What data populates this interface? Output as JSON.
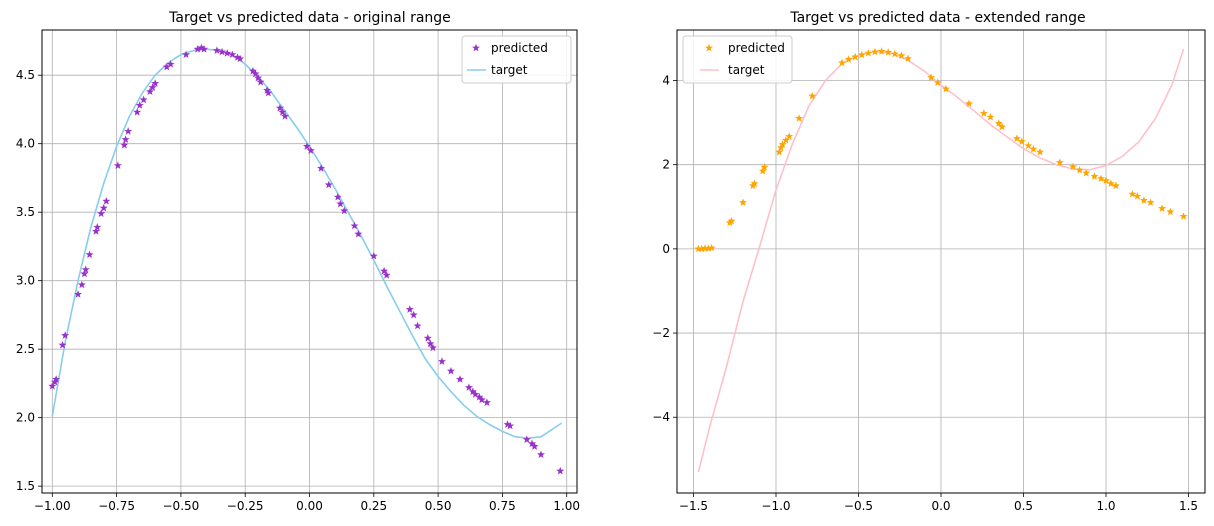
{
  "chart_data": [
    {
      "type": "scatter",
      "title": "Target vs predicted data - original range",
      "xlabel": "",
      "ylabel": "",
      "xlim": [
        -1.04,
        1.04
      ],
      "ylim": [
        1.45,
        4.83
      ],
      "xticks": [
        -1.0,
        -0.75,
        -0.5,
        -0.25,
        0.0,
        0.25,
        0.5,
        0.75,
        1.0
      ],
      "xtick_labels": [
        "−1.00",
        "−0.75",
        "−0.50",
        "−0.25",
        "0.00",
        "0.25",
        "0.50",
        "0.75",
        "1.00"
      ],
      "yticks": [
        1.5,
        2.0,
        2.5,
        3.0,
        3.5,
        4.0,
        4.5
      ],
      "ytick_labels": [
        "1.5",
        "2.0",
        "2.5",
        "3.0",
        "3.5",
        "4.0",
        "4.5"
      ],
      "grid": true,
      "legend_position": "top-right",
      "series": [
        {
          "name": "predicted",
          "kind": "scatter",
          "marker": "star",
          "color": "#9932CC",
          "points": [
            [
              -1.0,
              2.23
            ],
            [
              -0.99,
              2.26
            ],
            [
              -0.985,
              2.28
            ],
            [
              -0.96,
              2.53
            ],
            [
              -0.95,
              2.6
            ],
            [
              -0.9,
              2.9
            ],
            [
              -0.885,
              2.97
            ],
            [
              -0.875,
              3.05
            ],
            [
              -0.87,
              3.08
            ],
            [
              -0.855,
              3.19
            ],
            [
              -0.83,
              3.36
            ],
            [
              -0.825,
              3.39
            ],
            [
              -0.81,
              3.49
            ],
            [
              -0.8,
              3.53
            ],
            [
              -0.79,
              3.58
            ],
            [
              -0.745,
              3.84
            ],
            [
              -0.72,
              3.99
            ],
            [
              -0.715,
              4.03
            ],
            [
              -0.705,
              4.09
            ],
            [
              -0.67,
              4.23
            ],
            [
              -0.66,
              4.28
            ],
            [
              -0.645,
              4.32
            ],
            [
              -0.62,
              4.38
            ],
            [
              -0.61,
              4.41
            ],
            [
              -0.6,
              4.44
            ],
            [
              -0.555,
              4.56
            ],
            [
              -0.54,
              4.58
            ],
            [
              -0.48,
              4.65
            ],
            [
              -0.435,
              4.69
            ],
            [
              -0.42,
              4.7
            ],
            [
              -0.41,
              4.69
            ],
            [
              -0.36,
              4.68
            ],
            [
              -0.34,
              4.67
            ],
            [
              -0.32,
              4.66
            ],
            [
              -0.3,
              4.65
            ],
            [
              -0.28,
              4.63
            ],
            [
              -0.27,
              4.62
            ],
            [
              -0.22,
              4.53
            ],
            [
              -0.21,
              4.51
            ],
            [
              -0.2,
              4.48
            ],
            [
              -0.19,
              4.45
            ],
            [
              -0.165,
              4.39
            ],
            [
              -0.16,
              4.37
            ],
            [
              -0.115,
              4.26
            ],
            [
              -0.105,
              4.23
            ],
            [
              -0.095,
              4.2
            ],
            [
              -0.01,
              3.98
            ],
            [
              0.005,
              3.95
            ],
            [
              0.045,
              3.82
            ],
            [
              0.075,
              3.7
            ],
            [
              0.11,
              3.61
            ],
            [
              0.12,
              3.56
            ],
            [
              0.135,
              3.51
            ],
            [
              0.175,
              3.4
            ],
            [
              0.19,
              3.34
            ],
            [
              0.25,
              3.18
            ],
            [
              0.29,
              3.07
            ],
            [
              0.3,
              3.04
            ],
            [
              0.39,
              2.79
            ],
            [
              0.405,
              2.75
            ],
            [
              0.42,
              2.67
            ],
            [
              0.46,
              2.58
            ],
            [
              0.47,
              2.54
            ],
            [
              0.48,
              2.51
            ],
            [
              0.515,
              2.41
            ],
            [
              0.55,
              2.34
            ],
            [
              0.585,
              2.28
            ],
            [
              0.62,
              2.22
            ],
            [
              0.635,
              2.19
            ],
            [
              0.645,
              2.17
            ],
            [
              0.66,
              2.15
            ],
            [
              0.67,
              2.13
            ],
            [
              0.69,
              2.11
            ],
            [
              0.77,
              1.95
            ],
            [
              0.78,
              1.94
            ],
            [
              0.845,
              1.84
            ],
            [
              0.865,
              1.81
            ],
            [
              0.875,
              1.79
            ],
            [
              0.9,
              1.73
            ],
            [
              0.975,
              1.61
            ]
          ]
        },
        {
          "name": "target",
          "kind": "line",
          "color": "#87CEEB",
          "points": [
            [
              -1.0,
              2.01
            ],
            [
              -0.95,
              2.55
            ],
            [
              -0.9,
              3.0
            ],
            [
              -0.85,
              3.39
            ],
            [
              -0.8,
              3.71
            ],
            [
              -0.75,
              3.98
            ],
            [
              -0.7,
              4.2
            ],
            [
              -0.65,
              4.37
            ],
            [
              -0.6,
              4.5
            ],
            [
              -0.55,
              4.59
            ],
            [
              -0.5,
              4.65
            ],
            [
              -0.45,
              4.68
            ],
            [
              -0.4,
              4.69
            ],
            [
              -0.35,
              4.68
            ],
            [
              -0.3,
              4.65
            ],
            [
              -0.25,
              4.58
            ],
            [
              -0.2,
              4.49
            ],
            [
              -0.15,
              4.38
            ],
            [
              -0.1,
              4.25
            ],
            [
              -0.05,
              4.12
            ],
            [
              0.0,
              3.98
            ],
            [
              0.05,
              3.83
            ],
            [
              0.1,
              3.67
            ],
            [
              0.15,
              3.5
            ],
            [
              0.2,
              3.33
            ],
            [
              0.25,
              3.15
            ],
            [
              0.3,
              2.96
            ],
            [
              0.35,
              2.78
            ],
            [
              0.4,
              2.6
            ],
            [
              0.45,
              2.43
            ],
            [
              0.5,
              2.3
            ],
            [
              0.55,
              2.19
            ],
            [
              0.6,
              2.09
            ],
            [
              0.65,
              2.01
            ],
            [
              0.7,
              1.95
            ],
            [
              0.75,
              1.9
            ],
            [
              0.8,
              1.86
            ],
            [
              0.85,
              1.85
            ],
            [
              0.9,
              1.86
            ],
            [
              0.98,
              1.96
            ]
          ]
        }
      ]
    },
    {
      "type": "scatter",
      "title": "Target vs predicted data - extended range",
      "xlabel": "",
      "ylabel": "",
      "xlim": [
        -1.6,
        1.6
      ],
      "ylim": [
        -5.8,
        5.2
      ],
      "xticks": [
        -1.5,
        -1.0,
        -0.5,
        0.0,
        0.5,
        1.0,
        1.5
      ],
      "xtick_labels": [
        "−1.5",
        "−1.0",
        "−0.5",
        "0.0",
        "0.5",
        "1.0",
        "1.5"
      ],
      "yticks": [
        -4,
        -2,
        0,
        2,
        4
      ],
      "ytick_labels": [
        "−4",
        "−2",
        "0",
        "2",
        "4"
      ],
      "grid": true,
      "legend_position": "top-left",
      "series": [
        {
          "name": "predicted",
          "kind": "scatter",
          "marker": "star",
          "color": "#FFA500",
          "points": [
            [
              -1.47,
              0.0
            ],
            [
              -1.45,
              0.0
            ],
            [
              -1.43,
              0.01
            ],
            [
              -1.41,
              0.01
            ],
            [
              -1.39,
              0.02
            ],
            [
              -1.28,
              0.62
            ],
            [
              -1.27,
              0.66
            ],
            [
              -1.2,
              1.1
            ],
            [
              -1.14,
              1.5
            ],
            [
              -1.13,
              1.55
            ],
            [
              -1.08,
              1.85
            ],
            [
              -1.07,
              1.94
            ],
            [
              -0.98,
              2.3
            ],
            [
              -0.97,
              2.4
            ],
            [
              -0.96,
              2.48
            ],
            [
              -0.94,
              2.58
            ],
            [
              -0.92,
              2.67
            ],
            [
              -0.86,
              3.1
            ],
            [
              -0.78,
              3.63
            ],
            [
              -0.6,
              4.42
            ],
            [
              -0.56,
              4.5
            ],
            [
              -0.52,
              4.56
            ],
            [
              -0.48,
              4.61
            ],
            [
              -0.44,
              4.65
            ],
            [
              -0.4,
              4.68
            ],
            [
              -0.36,
              4.69
            ],
            [
              -0.32,
              4.67
            ],
            [
              -0.28,
              4.63
            ],
            [
              -0.24,
              4.59
            ],
            [
              -0.2,
              4.52
            ],
            [
              -0.06,
              4.07
            ],
            [
              -0.02,
              3.95
            ],
            [
              0.03,
              3.8
            ],
            [
              0.17,
              3.45
            ],
            [
              0.26,
              3.22
            ],
            [
              0.3,
              3.13
            ],
            [
              0.35,
              2.98
            ],
            [
              0.37,
              2.9
            ],
            [
              0.46,
              2.62
            ],
            [
              0.49,
              2.55
            ],
            [
              0.53,
              2.45
            ],
            [
              0.56,
              2.37
            ],
            [
              0.6,
              2.3
            ],
            [
              0.72,
              2.05
            ],
            [
              0.8,
              1.95
            ],
            [
              0.84,
              1.87
            ],
            [
              0.88,
              1.8
            ],
            [
              0.93,
              1.72
            ],
            [
              0.97,
              1.67
            ],
            [
              1.0,
              1.62
            ],
            [
              1.03,
              1.55
            ],
            [
              1.06,
              1.5
            ],
            [
              1.16,
              1.3
            ],
            [
              1.19,
              1.25
            ],
            [
              1.23,
              1.15
            ],
            [
              1.27,
              1.1
            ],
            [
              1.34,
              0.96
            ],
            [
              1.39,
              0.88
            ],
            [
              1.47,
              0.77
            ]
          ]
        },
        {
          "name": "target",
          "kind": "line",
          "color": "#FFC0CB",
          "points": [
            [
              -1.47,
              -5.3
            ],
            [
              -1.4,
              -4.2
            ],
            [
              -1.3,
              -2.8
            ],
            [
              -1.2,
              -1.25
            ],
            [
              -1.1,
              0.05
            ],
            [
              -1.0,
              1.4
            ],
            [
              -0.9,
              2.5
            ],
            [
              -0.8,
              3.4
            ],
            [
              -0.7,
              4.0
            ],
            [
              -0.6,
              4.4
            ],
            [
              -0.5,
              4.6
            ],
            [
              -0.4,
              4.69
            ],
            [
              -0.3,
              4.65
            ],
            [
              -0.2,
              4.48
            ],
            [
              -0.1,
              4.22
            ],
            [
              0.0,
              3.9
            ],
            [
              0.1,
              3.6
            ],
            [
              0.2,
              3.28
            ],
            [
              0.3,
              2.95
            ],
            [
              0.4,
              2.66
            ],
            [
              0.5,
              2.38
            ],
            [
              0.6,
              2.16
            ],
            [
              0.7,
              2.0
            ],
            [
              0.8,
              1.9
            ],
            [
              0.9,
              1.88
            ],
            [
              1.0,
              1.98
            ],
            [
              1.1,
              2.2
            ],
            [
              1.2,
              2.55
            ],
            [
              1.3,
              3.1
            ],
            [
              1.4,
              3.9
            ],
            [
              1.47,
              4.75
            ]
          ]
        }
      ]
    }
  ]
}
